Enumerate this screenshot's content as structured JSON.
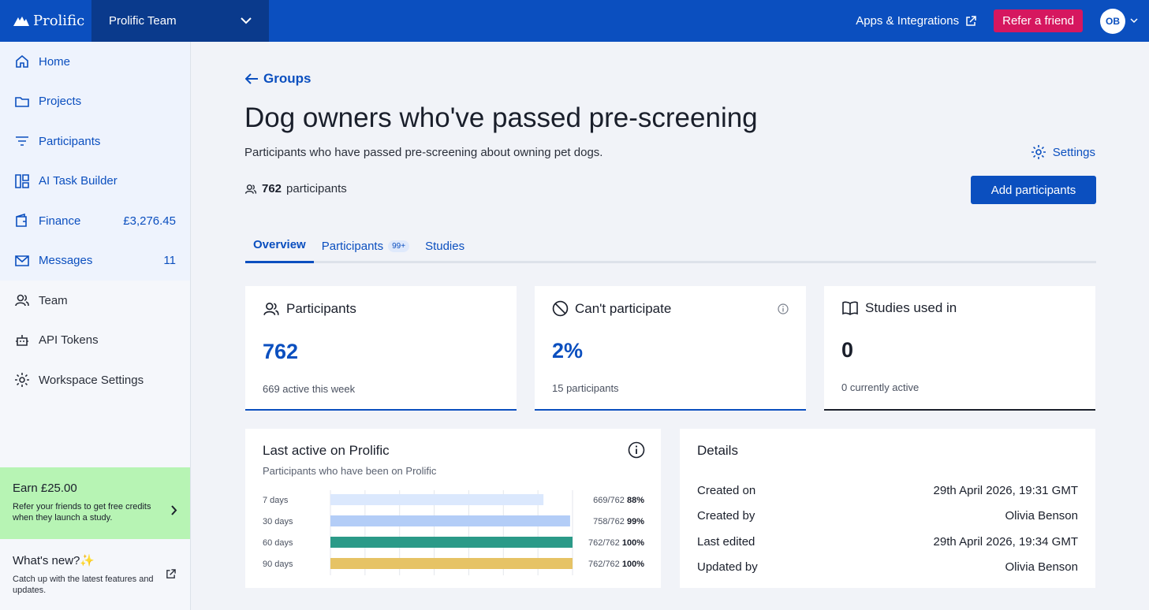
{
  "topbar": {
    "logo": "Prolific",
    "team": "Prolific Team",
    "apps_label": "Apps & Integrations",
    "refer_label": "Refer a friend",
    "avatar_initials": "OB"
  },
  "sidebar": {
    "items": [
      {
        "label": "Home",
        "icon": "home-icon",
        "value": ""
      },
      {
        "label": "Projects",
        "icon": "folder-icon",
        "value": ""
      },
      {
        "label": "Participants",
        "icon": "filter-icon",
        "value": ""
      },
      {
        "label": "AI Task Builder",
        "icon": "layout-icon",
        "value": ""
      },
      {
        "label": "Finance",
        "icon": "wallet-icon",
        "value": "£3,276.45"
      },
      {
        "label": "Messages",
        "icon": "mail-icon",
        "value": "11"
      },
      {
        "label": "Team",
        "icon": "people-icon",
        "value": ""
      },
      {
        "label": "API Tokens",
        "icon": "robot-icon",
        "value": ""
      },
      {
        "label": "Workspace Settings",
        "icon": "gear-icon",
        "value": ""
      }
    ],
    "earn": {
      "title": "Earn £25.00",
      "text": "Refer your friends to get free credits when they launch a study."
    },
    "whats_new": {
      "title": "What's new?✨",
      "text": "Catch up with the latest features and updates."
    }
  },
  "main": {
    "back_label": "Groups",
    "title": "Dog owners who've passed pre-screening",
    "description": "Participants who have passed pre-screening about owning pet dogs.",
    "settings_label": "Settings",
    "participant_count": "762",
    "participant_count_suffix": "participants",
    "add_button": "Add participants",
    "tabs": [
      {
        "label": "Overview",
        "badge": ""
      },
      {
        "label": "Participants",
        "badge": "99+"
      },
      {
        "label": "Studies",
        "badge": ""
      }
    ],
    "stats": [
      {
        "title": "Participants",
        "value": "762",
        "sub": "669 active this week"
      },
      {
        "title": "Can't participate",
        "value": "2%",
        "sub": "15 participants"
      },
      {
        "title": "Studies used in",
        "value": "0",
        "sub": "0 currently active"
      }
    ],
    "last_active": {
      "title": "Last active on Prolific",
      "subtitle": "Participants who have been on Prolific"
    },
    "details": {
      "title": "Details",
      "rows": [
        {
          "label": "Created on",
          "value": "29th April 2026, 19:31 GMT"
        },
        {
          "label": "Created by",
          "value": "Olivia Benson"
        },
        {
          "label": "Last edited",
          "value": "29th April 2026, 19:34 GMT"
        },
        {
          "label": "Updated by",
          "value": "Olivia Benson"
        }
      ]
    }
  },
  "chart_data": {
    "type": "bar",
    "orientation": "horizontal",
    "categories": [
      "7 days",
      "30 days",
      "60 days",
      "90 days"
    ],
    "values": [
      88,
      99,
      100,
      100
    ],
    "counts": [
      "669/762",
      "758/762",
      "762/762",
      "762/762"
    ],
    "labels": [
      "88%",
      "99%",
      "100%",
      "100%"
    ],
    "colors": [
      "#dbe8fd",
      "#b3cdf7",
      "#2b9a88",
      "#e6c365"
    ],
    "xlim": [
      0,
      100
    ],
    "grid": true
  }
}
